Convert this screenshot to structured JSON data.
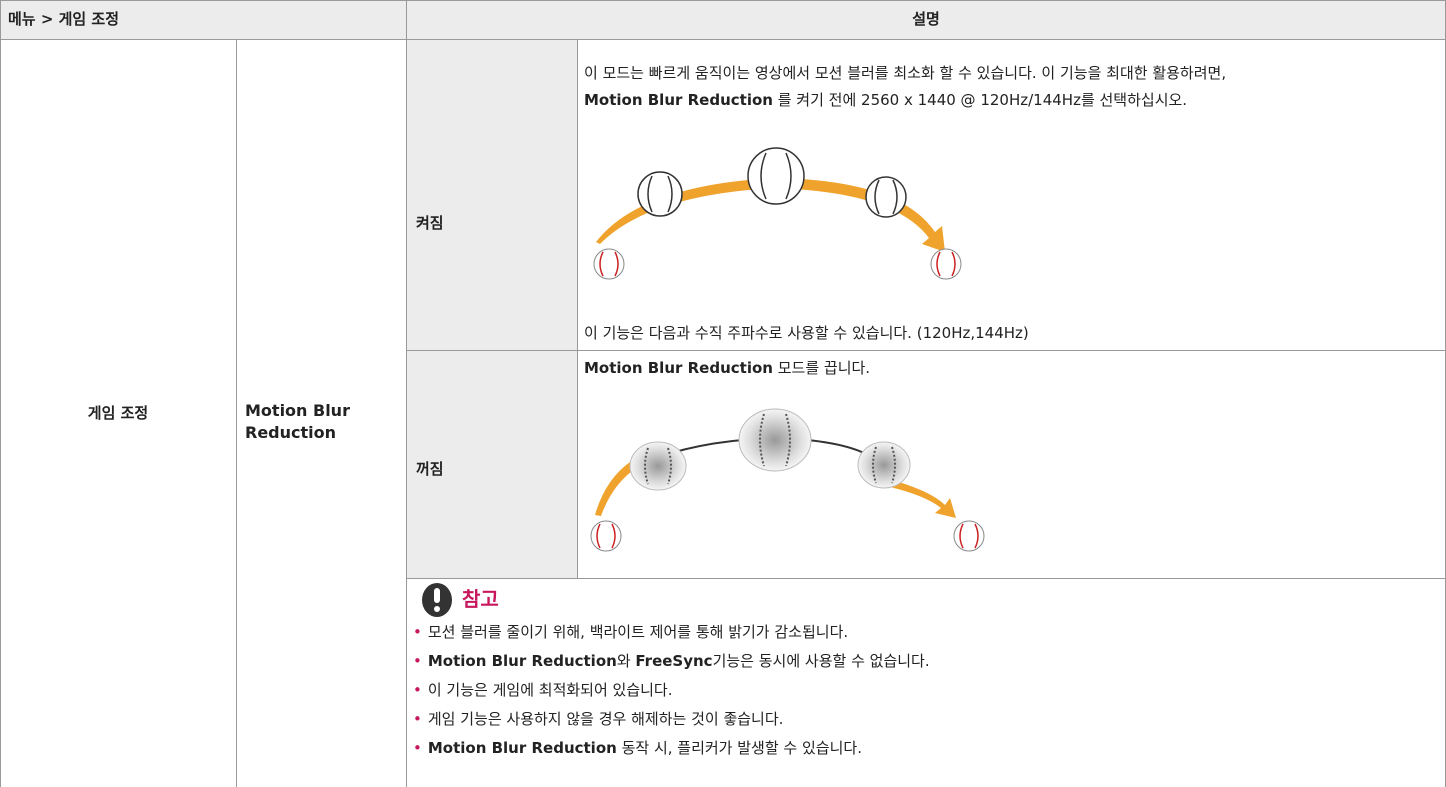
{
  "header": {
    "menu": "메뉴 > 게임 조정",
    "description": "설명"
  },
  "table": {
    "menu": "게임 조정",
    "item": "Motion Blur Reduction",
    "rows": [
      {
        "option": "켜짐",
        "description": [
          [
            {
              "text": "이 모드는 빠르게 움직이는 영상에서 모션 블러를 최소화 할 수 있습니다. 이 기능을 최대한 활용하려면,"
            }
          ],
          [
            {
              "text": "Motion Blur Reduction",
              "bold": true
            },
            {
              "text": " 를 켜기 전에 2560 x 1440 @ 120Hz/144Hz를 선택하십시오."
            }
          ]
        ],
        "footnote": "이 기능은 다음과 수직 주파수로 사용할 수 있습니다. (120Hz,144Hz)"
      },
      {
        "option": "꺼짐",
        "description": [
          [
            {
              "text": "Motion Blur Reduction",
              "bold": true
            },
            {
              "text": " 모드를 끕니다."
            }
          ]
        ]
      }
    ],
    "note": {
      "title": "참고",
      "items": [
        [
          {
            "text": "모션 블러를 줄이기 위해, 백라이트 제어를 통해 밝기가 감소됩니다."
          }
        ],
        [
          {
            "text": "Motion Blur Reduction",
            "bold": true
          },
          {
            "text": "와 "
          },
          {
            "text": "FreeSync",
            "bold": true
          },
          {
            "text": "기능은 동시에 사용할 수 없습니다."
          }
        ],
        [
          {
            "text": "이 기능은 게임에 최적화되어 있습니다."
          }
        ],
        [
          {
            "text": "게임 기능은 사용하지 않을 경우 해제하는 것이 좋습니다."
          }
        ],
        [
          {
            "text": "Motion Blur Reduction",
            "bold": true
          },
          {
            "text": " 동작 시, 플리커가 발생할 수 있습니다."
          }
        ]
      ]
    }
  }
}
